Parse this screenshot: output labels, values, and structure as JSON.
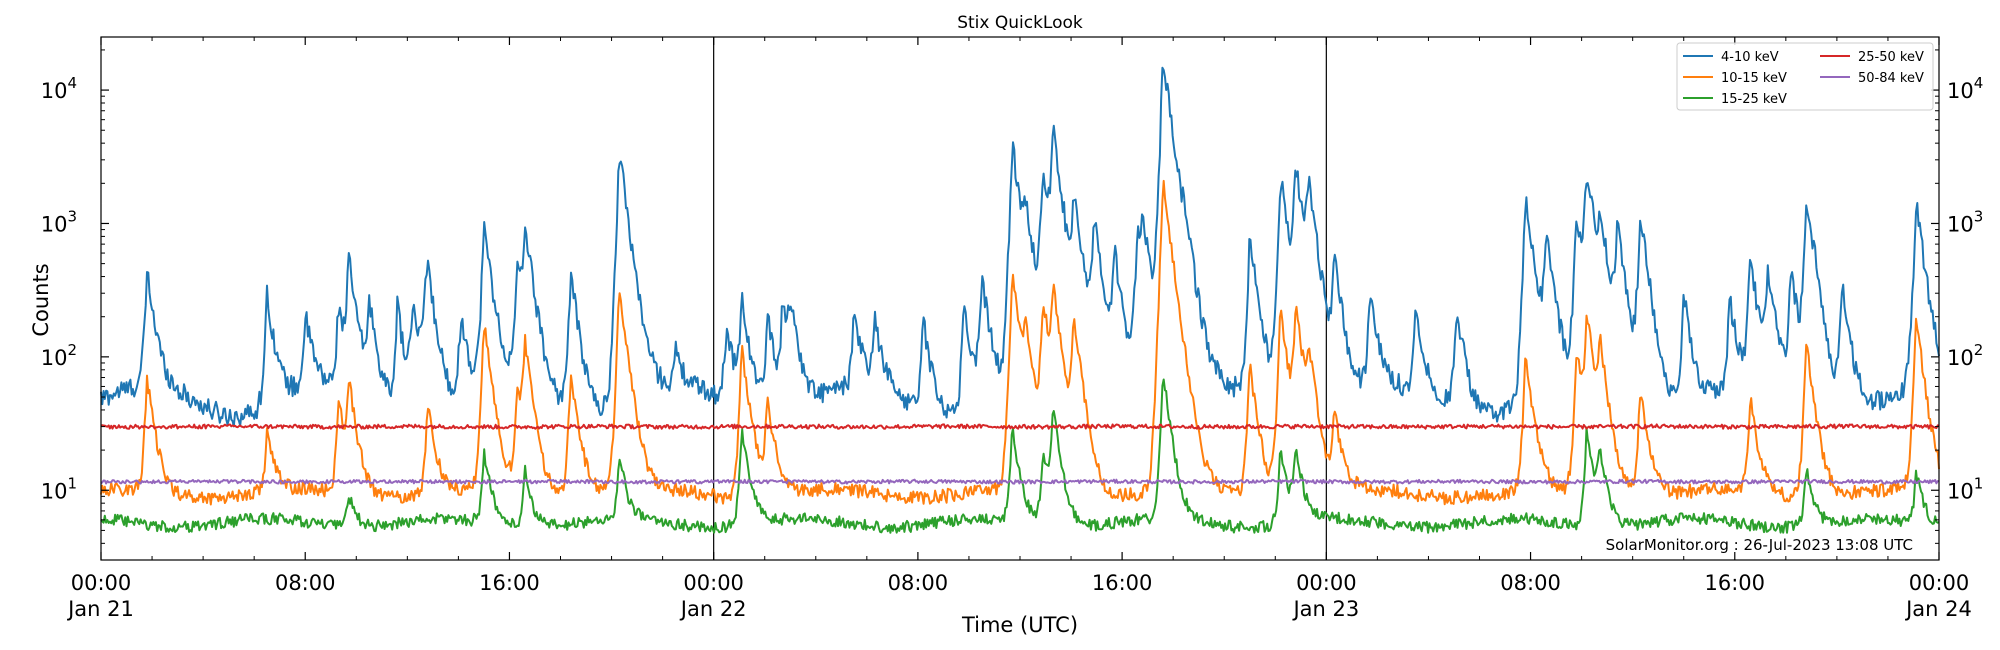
{
  "chart_data": {
    "type": "line",
    "title": "Stix QuickLook",
    "xlabel": "Time (UTC)",
    "ylabel": "Counts",
    "yscale": "log",
    "ylim": [
      3,
      25000
    ],
    "xlim_hours": [
      0,
      72
    ],
    "grid": false,
    "legend_position": "top-right",
    "legend_columns": 2,
    "credit": "SolarMonitor.org : 26-Jul-2023 13:08 UTC",
    "x_ticks": [
      {
        "hour": 0,
        "time": "00:00",
        "date": "Jan 21"
      },
      {
        "hour": 8,
        "time": "08:00",
        "date": ""
      },
      {
        "hour": 16,
        "time": "16:00",
        "date": ""
      },
      {
        "hour": 24,
        "time": "00:00",
        "date": "Jan 22"
      },
      {
        "hour": 32,
        "time": "08:00",
        "date": ""
      },
      {
        "hour": 40,
        "time": "16:00",
        "date": ""
      },
      {
        "hour": 48,
        "time": "00:00",
        "date": "Jan 23"
      },
      {
        "hour": 56,
        "time": "08:00",
        "date": ""
      },
      {
        "hour": 64,
        "time": "16:00",
        "date": ""
      },
      {
        "hour": 72,
        "time": "00:00",
        "date": "Jan 24"
      }
    ],
    "y_ticks": [
      {
        "value": 10,
        "base": "10",
        "exp": "1"
      },
      {
        "value": 100,
        "base": "10",
        "exp": "2"
      },
      {
        "value": 1000,
        "base": "10",
        "exp": "3"
      },
      {
        "value": 10000,
        "base": "10",
        "exp": "4"
      }
    ],
    "day_boundaries_hours": [
      24,
      48
    ],
    "series": [
      {
        "name": "4-10 keV",
        "color": "#1f77b4",
        "baseline": 48,
        "noise": 0.18,
        "peaks": [
          [
            1.8,
            420
          ],
          [
            6.5,
            300
          ],
          [
            8.0,
            200
          ],
          [
            9.3,
            230
          ],
          [
            9.7,
            500
          ],
          [
            10.5,
            250
          ],
          [
            11.6,
            250
          ],
          [
            12.2,
            250
          ],
          [
            12.8,
            260
          ],
          [
            12.7,
            350
          ],
          [
            14.1,
            200
          ],
          [
            15.0,
            950
          ],
          [
            16.3,
            420
          ],
          [
            16.6,
            900
          ],
          [
            18.4,
            430
          ],
          [
            20.3,
            3500
          ],
          [
            22.5,
            100
          ],
          [
            24.5,
            180
          ],
          [
            25.1,
            280
          ],
          [
            26.1,
            220
          ],
          [
            26.7,
            260
          ],
          [
            27.0,
            230
          ],
          [
            29.5,
            200
          ],
          [
            30.3,
            180
          ],
          [
            32.2,
            200
          ],
          [
            33.8,
            250
          ],
          [
            34.5,
            400
          ],
          [
            35.7,
            3900
          ],
          [
            36.2,
            1000
          ],
          [
            36.9,
            2600
          ],
          [
            37.3,
            4300
          ],
          [
            38.1,
            1500
          ],
          [
            38.9,
            1000
          ],
          [
            39.7,
            600
          ],
          [
            40.8,
            850
          ],
          [
            40.6,
            950
          ],
          [
            41.6,
            16800
          ],
          [
            42.4,
            400
          ],
          [
            45.0,
            800
          ],
          [
            46.2,
            2300
          ],
          [
            46.8,
            2600
          ],
          [
            47.3,
            1800
          ],
          [
            48.3,
            520
          ],
          [
            49.7,
            280
          ],
          [
            51.5,
            220
          ],
          [
            53.1,
            250
          ],
          [
            55.8,
            1500
          ],
          [
            56.6,
            800
          ],
          [
            57.8,
            1200
          ],
          [
            58.2,
            2300
          ],
          [
            58.7,
            1000
          ],
          [
            59.4,
            900
          ],
          [
            60.3,
            1200
          ],
          [
            62.0,
            300
          ],
          [
            63.8,
            260
          ],
          [
            64.6,
            550
          ],
          [
            65.3,
            400
          ],
          [
            66.2,
            450
          ],
          [
            66.8,
            1300
          ],
          [
            67.1,
            250
          ],
          [
            68.2,
            350
          ],
          [
            71.1,
            1450
          ]
        ],
        "values": []
      },
      {
        "name": "10-15 keV",
        "color": "#ff7f0e",
        "baseline": 9.5,
        "noise": 0.12,
        "peaks": [
          [
            1.8,
            70
          ],
          [
            6.5,
            28
          ],
          [
            9.3,
            48
          ],
          [
            9.7,
            65
          ],
          [
            12.8,
            45
          ],
          [
            15.0,
            180
          ],
          [
            16.3,
            60
          ],
          [
            16.6,
            120
          ],
          [
            18.4,
            80
          ],
          [
            20.3,
            340
          ],
          [
            25.1,
            120
          ],
          [
            26.1,
            48
          ],
          [
            35.7,
            450
          ],
          [
            36.2,
            150
          ],
          [
            36.9,
            260
          ],
          [
            37.3,
            300
          ],
          [
            38.1,
            200
          ],
          [
            41.6,
            2100
          ],
          [
            45.0,
            90
          ],
          [
            46.2,
            230
          ],
          [
            46.8,
            230
          ],
          [
            47.3,
            100
          ],
          [
            48.3,
            40
          ],
          [
            55.8,
            100
          ],
          [
            57.8,
            110
          ],
          [
            58.2,
            200
          ],
          [
            58.7,
            120
          ],
          [
            60.3,
            60
          ],
          [
            64.6,
            50
          ],
          [
            66.8,
            130
          ],
          [
            71.1,
            200
          ]
        ],
        "values": []
      },
      {
        "name": "15-25 keV",
        "color": "#2ca02c",
        "baseline": 5.7,
        "noise": 0.1,
        "peaks": [
          [
            9.7,
            10
          ],
          [
            15.0,
            20
          ],
          [
            16.6,
            15
          ],
          [
            20.3,
            18
          ],
          [
            25.1,
            30
          ],
          [
            35.7,
            30
          ],
          [
            36.9,
            20
          ],
          [
            37.3,
            40
          ],
          [
            41.6,
            80
          ],
          [
            46.2,
            22
          ],
          [
            46.8,
            20
          ],
          [
            58.2,
            30
          ],
          [
            58.7,
            20
          ],
          [
            66.8,
            15
          ],
          [
            71.1,
            14
          ]
        ],
        "values": []
      },
      {
        "name": "25-50 keV",
        "color": "#d62728",
        "baseline": 30,
        "noise": 0.035,
        "peaks": [],
        "values": []
      },
      {
        "name": "50-84 keV",
        "color": "#9467bd",
        "baseline": 11.6,
        "noise": 0.03,
        "peaks": [],
        "values": []
      }
    ]
  }
}
